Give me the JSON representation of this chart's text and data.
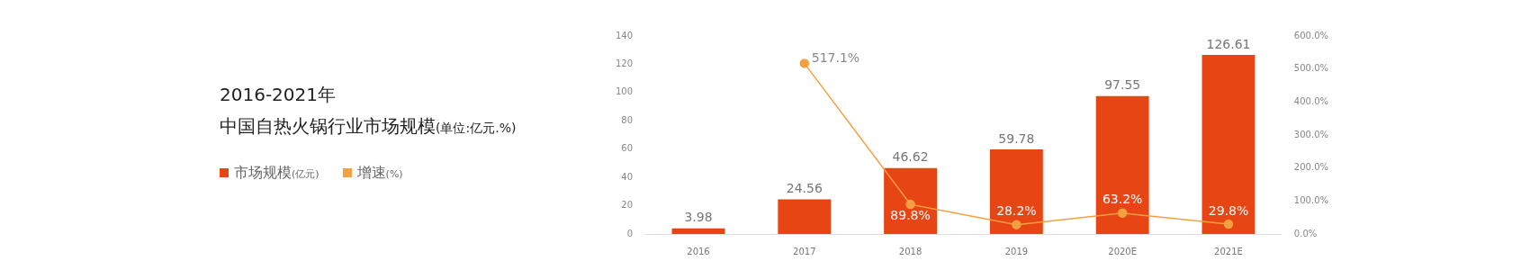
{
  "chart_data": {
    "type": "bar",
    "title": "2016-2021年",
    "subtitle": "中国自热火锅行业市场规模(单位:亿元.%)",
    "categories": [
      "2016",
      "2017",
      "2018",
      "2019",
      "2020E",
      "2021E"
    ],
    "series": [
      {
        "name": "市场规模(亿元)",
        "color": "#e84515",
        "values": [
          3.98,
          24.56,
          46.62,
          59.78,
          97.55,
          126.61
        ]
      },
      {
        "name": "增速(%)",
        "type": "line",
        "axis": "y2",
        "color": "#f5a040",
        "marker": "circle",
        "values": [
          null,
          517.1,
          89.8,
          28.2,
          63.2,
          29.8
        ],
        "value_labels": [
          null,
          "517.1%",
          "89.8%",
          "28.2%",
          "63.2%",
          "29.8%"
        ]
      }
    ],
    "ylim": [
      0,
      140
    ],
    "yticks": [
      0,
      20,
      40,
      60,
      80,
      100,
      120,
      140
    ],
    "y2lim": [
      0,
      600
    ],
    "y2ticks": [
      {
        "value": 0,
        "label": "0.0%"
      },
      {
        "value": 100,
        "label": "100.0%"
      },
      {
        "value": 200,
        "label": "200.0%"
      },
      {
        "value": 300,
        "label": "300.0%"
      },
      {
        "value": 400,
        "label": "400.0%"
      },
      {
        "value": 500,
        "label": "500.0%"
      },
      {
        "value": 600,
        "label": "600.0%"
      }
    ],
    "grid": false,
    "legend": "left",
    "data_labels": true
  }
}
